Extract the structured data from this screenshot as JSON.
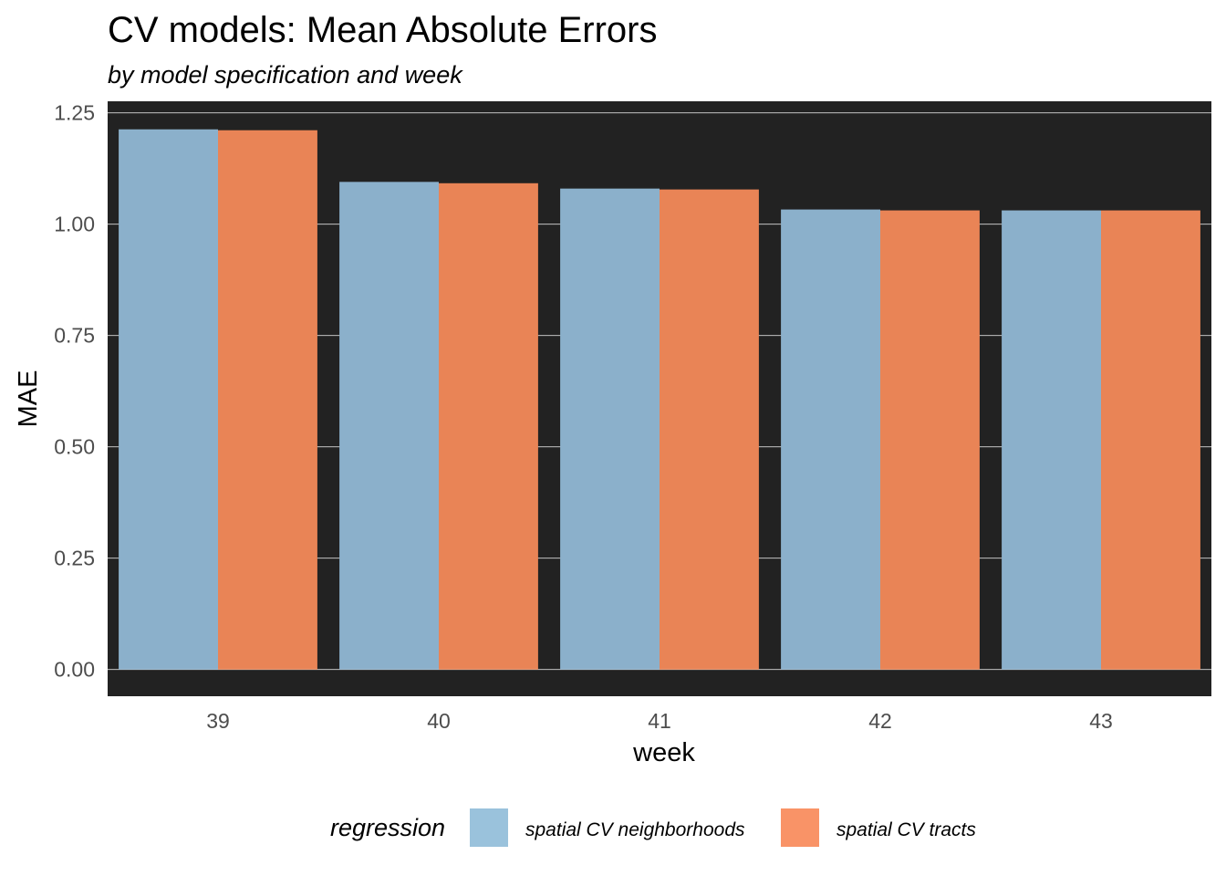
{
  "chart_data": {
    "type": "bar",
    "title": "CV models: Mean Absolute Errors",
    "subtitle": "by model specification and week",
    "xlabel": "week",
    "ylabel": "MAE",
    "categories": [
      "39",
      "40",
      "41",
      "42",
      "43"
    ],
    "series": [
      {
        "name": "spatial CV neighborhoods",
        "color": "#8bb0cb",
        "values": [
          1.213,
          1.095,
          1.08,
          1.033,
          1.031
        ]
      },
      {
        "name": "spatial CV tracts",
        "color": "#e98456",
        "values": [
          1.211,
          1.092,
          1.078,
          1.031,
          1.031
        ]
      }
    ],
    "ylim": [
      -0.06,
      1.276
    ],
    "yticks": [
      "0.00",
      "0.25",
      "0.50",
      "0.75",
      "1.00",
      "1.25"
    ],
    "grid": true,
    "panel_background": "#222222",
    "legend": {
      "title": "regression",
      "position": "bottom",
      "swatch_colors": [
        "#9ac2dc",
        "#f99367"
      ]
    }
  }
}
